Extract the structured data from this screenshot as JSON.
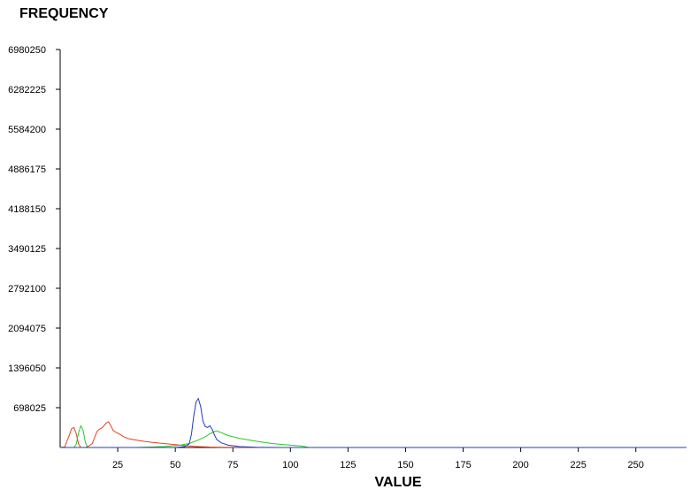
{
  "chart_data": {
    "type": "line",
    "ylabel": "FREQUENCY",
    "xlabel": "VALUE",
    "xlim": [
      0,
      272
    ],
    "ylim": [
      0,
      6980250
    ],
    "xticks": [
      25,
      50,
      75,
      100,
      125,
      150,
      175,
      200,
      225,
      250
    ],
    "yticks": [
      698025,
      1396050,
      2094075,
      2792100,
      3490125,
      4188150,
      4886175,
      5584200,
      6282225,
      6980250
    ],
    "grid": false,
    "series": [
      {
        "color": "#e8401c",
        "points": [
          [
            0,
            0
          ],
          [
            2,
            10000
          ],
          [
            4,
            220000
          ],
          [
            5,
            330000
          ],
          [
            6,
            350000
          ],
          [
            7,
            240000
          ],
          [
            8,
            60000
          ],
          [
            9,
            0
          ],
          [
            11,
            0
          ],
          [
            12,
            15000
          ],
          [
            14,
            70000
          ],
          [
            15,
            180000
          ],
          [
            16,
            280000
          ],
          [
            17,
            320000
          ],
          [
            18,
            340000
          ],
          [
            19,
            380000
          ],
          [
            20,
            430000
          ],
          [
            21,
            450000
          ],
          [
            22,
            380000
          ],
          [
            23,
            300000
          ],
          [
            24,
            270000
          ],
          [
            26,
            230000
          ],
          [
            28,
            180000
          ],
          [
            30,
            150000
          ],
          [
            33,
            130000
          ],
          [
            36,
            110000
          ],
          [
            40,
            90000
          ],
          [
            45,
            70000
          ],
          [
            50,
            50000
          ],
          [
            55,
            30000
          ],
          [
            60,
            15000
          ],
          [
            65,
            8000
          ],
          [
            70,
            4000
          ],
          [
            80,
            1000
          ],
          [
            90,
            0
          ],
          [
            272,
            0
          ]
        ]
      },
      {
        "color": "#22cc22",
        "points": [
          [
            0,
            0
          ],
          [
            6,
            0
          ],
          [
            7,
            60000
          ],
          [
            8,
            260000
          ],
          [
            9,
            380000
          ],
          [
            10,
            300000
          ],
          [
            11,
            80000
          ],
          [
            12,
            0
          ],
          [
            33,
            0
          ],
          [
            45,
            15000
          ],
          [
            52,
            40000
          ],
          [
            56,
            70000
          ],
          [
            60,
            130000
          ],
          [
            63,
            190000
          ],
          [
            65,
            240000
          ],
          [
            67,
            280000
          ],
          [
            68,
            290000
          ],
          [
            70,
            260000
          ],
          [
            73,
            210000
          ],
          [
            78,
            160000
          ],
          [
            85,
            110000
          ],
          [
            92,
            70000
          ],
          [
            100,
            40000
          ],
          [
            105,
            25000
          ],
          [
            108,
            0
          ],
          [
            272,
            0
          ]
        ]
      },
      {
        "color": "#1c3cc8",
        "points": [
          [
            0,
            0
          ],
          [
            50,
            0
          ],
          [
            54,
            15000
          ],
          [
            56,
            60000
          ],
          [
            57,
            230000
          ],
          [
            58,
            550000
          ],
          [
            59,
            800000
          ],
          [
            60,
            860000
          ],
          [
            61,
            720000
          ],
          [
            62,
            460000
          ],
          [
            63,
            370000
          ],
          [
            64,
            350000
          ],
          [
            65,
            380000
          ],
          [
            66,
            320000
          ],
          [
            67,
            220000
          ],
          [
            68,
            140000
          ],
          [
            70,
            80000
          ],
          [
            73,
            40000
          ],
          [
            78,
            15000
          ],
          [
            85,
            5000
          ],
          [
            95,
            0
          ],
          [
            272,
            0
          ]
        ]
      }
    ]
  }
}
